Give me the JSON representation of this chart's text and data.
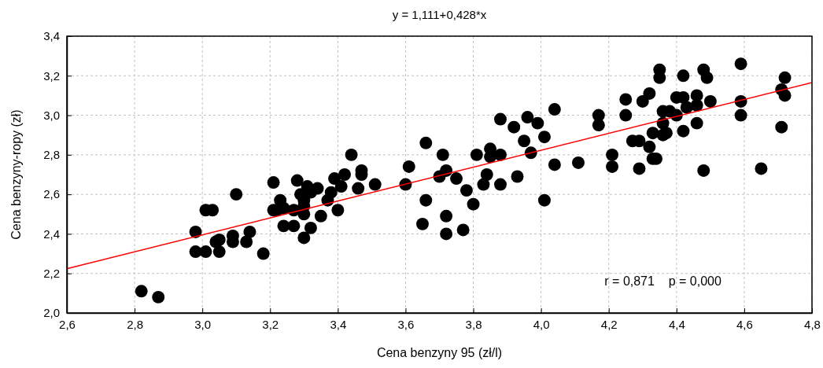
{
  "chart_data": {
    "type": "scatter",
    "title": "y = 1,111+0,428*x",
    "xlabel": "Cena benzyny 95 (zł/l)",
    "ylabel": "Cena benzyny-ropy (zł)",
    "xlim": [
      2.6,
      4.8
    ],
    "ylim": [
      2.0,
      3.4
    ],
    "xticks": [
      {
        "value": 2.6,
        "label": "2,6"
      },
      {
        "value": 2.8,
        "label": "2,8"
      },
      {
        "value": 3.0,
        "label": "3,0"
      },
      {
        "value": 3.2,
        "label": "3,2"
      },
      {
        "value": 3.4,
        "label": "3,4"
      },
      {
        "value": 3.6,
        "label": "3,6"
      },
      {
        "value": 3.8,
        "label": "3,8"
      },
      {
        "value": 4.0,
        "label": "4,0"
      },
      {
        "value": 4.2,
        "label": "4,2"
      },
      {
        "value": 4.4,
        "label": "4,4"
      },
      {
        "value": 4.6,
        "label": "4,6"
      },
      {
        "value": 4.8,
        "label": "4,8"
      }
    ],
    "yticks": [
      {
        "value": 2.0,
        "label": "2,0"
      },
      {
        "value": 2.2,
        "label": "2,2"
      },
      {
        "value": 2.4,
        "label": "2,4"
      },
      {
        "value": 2.6,
        "label": "2,6"
      },
      {
        "value": 2.8,
        "label": "2,8"
      },
      {
        "value": 3.0,
        "label": "3,0"
      },
      {
        "value": 3.2,
        "label": "3,2"
      },
      {
        "value": 3.4,
        "label": "3,4"
      }
    ],
    "grid": true,
    "marker": "circle",
    "annotations": [
      "r = 0,871    p = 0,000"
    ],
    "series": [
      {
        "color": "#000000",
        "x": [
          2.82,
          2.87,
          2.98,
          2.98,
          3.01,
          3.01,
          3.03,
          3.04,
          3.05,
          3.05,
          3.09,
          3.09,
          3.1,
          3.13,
          3.14,
          3.18,
          3.21,
          3.21,
          3.22,
          3.23,
          3.24,
          3.24,
          3.27,
          3.27,
          3.28,
          3.29,
          3.3,
          3.3,
          3.3,
          3.3,
          3.31,
          3.32,
          3.32,
          3.34,
          3.35,
          3.37,
          3.38,
          3.39,
          3.4,
          3.41,
          3.42,
          3.44,
          3.46,
          3.47,
          3.47,
          3.51,
          3.6,
          3.61,
          3.65,
          3.66,
          3.66,
          3.7,
          3.71,
          3.72,
          3.72,
          3.72,
          3.75,
          3.77,
          3.78,
          3.8,
          3.81,
          3.83,
          3.84,
          3.85,
          3.85,
          3.88,
          3.88,
          3.88,
          3.92,
          3.93,
          3.95,
          3.96,
          3.97,
          3.99,
          4.01,
          4.01,
          4.04,
          4.04,
          4.11,
          4.17,
          4.17,
          4.21,
          4.21,
          4.25,
          4.25,
          4.27,
          4.29,
          4.29,
          4.3,
          4.32,
          4.32,
          4.33,
          4.33,
          4.34,
          4.35,
          4.35,
          4.36,
          4.36,
          4.36,
          4.37,
          4.38,
          4.4,
          4.4,
          4.42,
          4.42,
          4.42,
          4.43,
          4.46,
          4.46,
          4.46,
          4.48,
          4.49,
          4.48,
          4.5,
          4.59,
          4.59,
          4.59,
          4.65,
          4.71,
          4.71,
          4.72,
          4.72
        ],
        "values": [
          2.11,
          2.08,
          2.41,
          2.31,
          2.31,
          2.52,
          2.52,
          2.36,
          2.37,
          2.31,
          2.39,
          2.36,
          2.6,
          2.36,
          2.41,
          2.3,
          2.66,
          2.52,
          2.52,
          2.57,
          2.44,
          2.53,
          2.44,
          2.52,
          2.67,
          2.6,
          2.38,
          2.5,
          2.57,
          2.54,
          2.64,
          2.43,
          2.61,
          2.63,
          2.49,
          2.57,
          2.61,
          2.68,
          2.52,
          2.64,
          2.7,
          2.8,
          2.63,
          2.7,
          2.72,
          2.65,
          2.65,
          2.74,
          2.45,
          2.57,
          2.86,
          2.69,
          2.8,
          2.72,
          2.49,
          2.4,
          2.68,
          2.42,
          2.62,
          2.55,
          2.8,
          2.65,
          2.7,
          2.83,
          2.79,
          2.65,
          2.8,
          2.98,
          2.94,
          2.69,
          2.87,
          2.99,
          2.81,
          2.96,
          2.89,
          2.57,
          2.75,
          3.03,
          2.76,
          3.0,
          2.95,
          2.8,
          2.74,
          3.08,
          3.0,
          2.87,
          2.87,
          2.73,
          3.07,
          3.11,
          2.84,
          2.91,
          2.78,
          2.78,
          3.23,
          3.19,
          3.02,
          2.96,
          2.9,
          2.91,
          3.02,
          3.0,
          3.09,
          3.2,
          3.09,
          2.92,
          3.04,
          3.1,
          3.05,
          2.96,
          3.23,
          3.19,
          2.72,
          3.07,
          3.26,
          3.07,
          3.0,
          2.73,
          2.94,
          3.13,
          3.19,
          3.1
        ]
      },
      {
        "type": "line",
        "color": "#ff0000",
        "line_style": "solid",
        "marker": "none",
        "x": [
          2.6,
          4.8
        ],
        "values": [
          2.224,
          3.165
        ]
      }
    ]
  }
}
